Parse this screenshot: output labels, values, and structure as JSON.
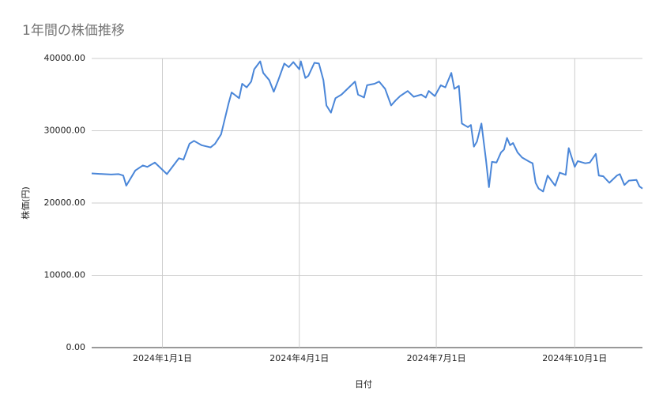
{
  "chart_data": {
    "type": "line",
    "title": "1年間の株価推移",
    "x_label": "日付",
    "y_label": "株価(円)",
    "x": [
      "2023-11-15",
      "2023-11-23",
      "2023-11-28",
      "2023-12-03",
      "2023-12-06",
      "2023-12-08",
      "2023-12-14",
      "2023-12-19",
      "2023-12-22",
      "2023-12-27",
      "2024-01-04",
      "2024-01-12",
      "2024-01-15",
      "2024-01-19",
      "2024-01-22",
      "2024-01-27",
      "2024-02-02",
      "2024-02-05",
      "2024-02-09",
      "2024-02-14",
      "2024-02-16",
      "2024-02-21",
      "2024-02-23",
      "2024-02-26",
      "2024-02-29",
      "2024-03-02",
      "2024-03-06",
      "2024-03-08",
      "2024-03-12",
      "2024-03-15",
      "2024-03-18",
      "2024-03-22",
      "2024-03-25",
      "2024-03-28",
      "2024-04-01",
      "2024-04-02",
      "2024-04-05",
      "2024-04-07",
      "2024-04-11",
      "2024-04-14",
      "2024-04-17",
      "2024-04-19",
      "2024-04-22",
      "2024-04-25",
      "2024-04-29",
      "2024-05-08",
      "2024-05-10",
      "2024-05-14",
      "2024-05-16",
      "2024-05-21",
      "2024-05-24",
      "2024-05-28",
      "2024-06-01",
      "2024-06-04",
      "2024-06-07",
      "2024-06-12",
      "2024-06-16",
      "2024-06-21",
      "2024-06-24",
      "2024-06-26",
      "2024-06-30",
      "2024-07-04",
      "2024-07-07",
      "2024-07-11",
      "2024-07-13",
      "2024-07-16",
      "2024-07-18",
      "2024-07-22",
      "2024-07-24",
      "2024-07-26",
      "2024-07-28",
      "2024-07-31",
      "2024-08-03",
      "2024-08-05",
      "2024-08-07",
      "2024-08-10",
      "2024-08-13",
      "2024-08-15",
      "2024-08-17",
      "2024-08-19",
      "2024-08-21",
      "2024-08-24",
      "2024-08-27",
      "2024-09-01",
      "2024-09-03",
      "2024-09-05",
      "2024-09-07",
      "2024-09-10",
      "2024-09-13",
      "2024-09-18",
      "2024-09-21",
      "2024-09-25",
      "2024-09-27",
      "2024-10-01",
      "2024-10-03",
      "2024-10-08",
      "2024-10-11",
      "2024-10-15",
      "2024-10-17",
      "2024-10-20",
      "2024-10-24",
      "2024-10-29",
      "2024-10-31",
      "2024-11-03",
      "2024-11-06",
      "2024-11-11",
      "2024-11-13",
      "2024-11-15"
    ],
    "series": [
      {
        "name": "株価(円)",
        "color": "#4a86d8",
        "values": [
          24100,
          24000,
          23950,
          24000,
          23800,
          22400,
          24500,
          25200,
          25000,
          25600,
          24000,
          26200,
          26000,
          28200,
          28600,
          28000,
          27700,
          28200,
          29500,
          33800,
          35300,
          34500,
          36500,
          36000,
          36800,
          38500,
          39600,
          38000,
          37000,
          35400,
          37000,
          39300,
          38800,
          39500,
          38500,
          39600,
          37300,
          37600,
          39400,
          39300,
          37000,
          33500,
          32500,
          34500,
          35000,
          36800,
          35000,
          34600,
          36300,
          36500,
          36800,
          35800,
          33500,
          34200,
          34800,
          35500,
          34700,
          35000,
          34600,
          35500,
          34800,
          36300,
          36000,
          38000,
          35800,
          36200,
          31000,
          30500,
          30800,
          27800,
          28500,
          31000,
          26000,
          22200,
          25700,
          25600,
          27000,
          27400,
          29000,
          28000,
          28300,
          27000,
          26300,
          25700,
          25500,
          22800,
          22000,
          21600,
          23800,
          22400,
          24200,
          23900,
          27600,
          25000,
          25800,
          25500,
          25600,
          26800,
          23800,
          23700,
          22800,
          23800,
          24000,
          22500,
          23100,
          23200,
          22300,
          22000
        ]
      }
    ],
    "xlim": [
      "2023-11-15",
      "2024-11-15"
    ],
    "xticks": [
      {
        "value": "2024-01-01",
        "label": "2024年1月1日"
      },
      {
        "value": "2024-04-01",
        "label": "2024年4月1日"
      },
      {
        "value": "2024-07-01",
        "label": "2024年7月1日"
      },
      {
        "value": "2024-10-01",
        "label": "2024年10月1日"
      }
    ],
    "ylim": [
      0,
      40000
    ],
    "yticks": [
      {
        "value": 0,
        "label": "0.00"
      },
      {
        "value": 10000,
        "label": "10000.00"
      },
      {
        "value": 20000,
        "label": "20000.00"
      },
      {
        "value": 30000,
        "label": "30000.00"
      },
      {
        "value": 40000,
        "label": "40000.00"
      }
    ],
    "grid": true
  }
}
